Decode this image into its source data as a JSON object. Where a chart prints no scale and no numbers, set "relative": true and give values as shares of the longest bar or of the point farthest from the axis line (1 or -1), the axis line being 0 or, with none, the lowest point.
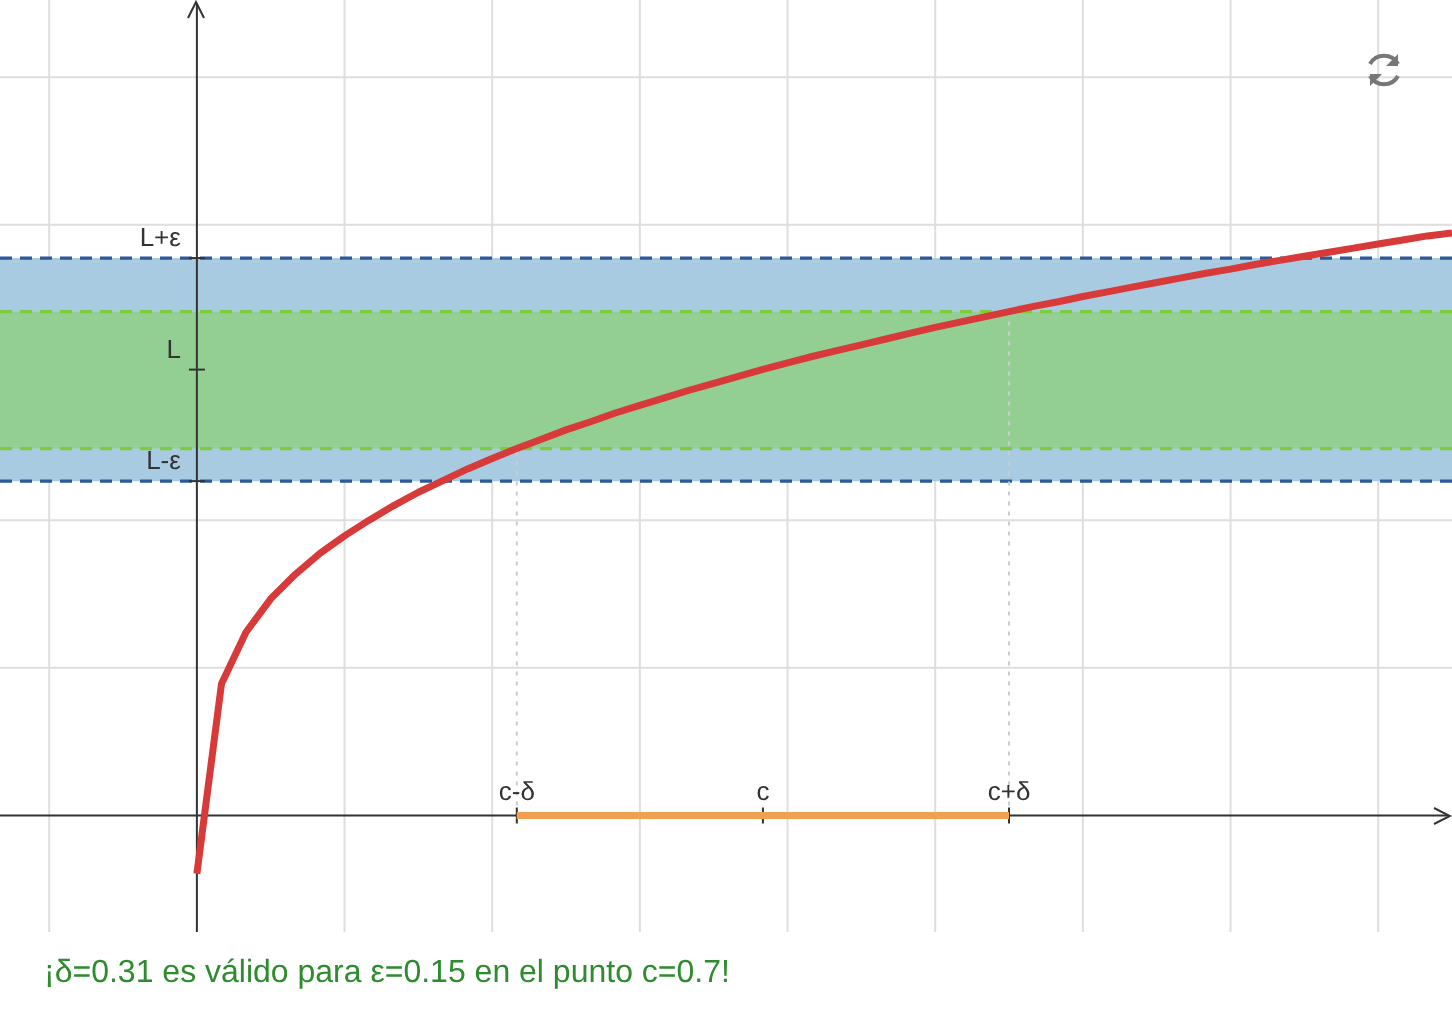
{
  "chart_data": {
    "type": "line",
    "relative": true,
    "marker": "none",
    "line_style": "solid",
    "grid": true,
    "categories": [
      null,
      null,
      null,
      null,
      null,
      null,
      null,
      null,
      null,
      null,
      null,
      null,
      null,
      null,
      null,
      null,
      null,
      null,
      null,
      null,
      null,
      "c-δ",
      null,
      null,
      null,
      null,
      null,
      null,
      null,
      null,
      null,
      "c",
      null,
      null,
      null,
      null,
      null,
      null,
      null,
      null,
      null,
      "c+δ",
      null,
      null,
      null,
      null,
      null,
      null,
      null,
      null,
      null,
      null,
      null,
      null,
      null,
      null,
      null,
      null,
      null,
      null
    ],
    "series": [
      {
        "color": "#d83a3a",
        "values": [
          null,
          null,
          null,
          null,
          null,
          null,
          null,
          null,
          -0.1,
          0.226,
          0.315,
          0.372,
          0.414,
          0.45,
          0.48,
          0.507,
          0.532,
          0.555,
          0.575,
          0.595,
          0.613,
          0.63,
          0.646,
          0.662,
          0.676,
          0.691,
          0.704,
          0.717,
          0.73,
          0.742,
          0.754,
          0.766,
          0.777,
          0.788,
          0.798,
          0.808,
          0.818,
          0.828,
          0.838,
          0.847,
          0.856,
          0.865,
          0.874,
          0.882,
          0.891,
          0.899,
          0.907,
          0.915,
          0.923,
          0.931,
          0.938,
          0.946,
          0.953,
          0.96,
          0.967,
          0.974,
          0.981,
          0.988,
          0.995,
          1
        ]
      },
      {
        "color": "#f0a050",
        "values": [
          null,
          null,
          null,
          null,
          null,
          null,
          null,
          null,
          null,
          null,
          null,
          null,
          null,
          null,
          null,
          null,
          null,
          null,
          null,
          null,
          null,
          0,
          0,
          0,
          0,
          0,
          0,
          0,
          0,
          0,
          0,
          0,
          0,
          0,
          0,
          0,
          0,
          0,
          0,
          0,
          0,
          0,
          null,
          null,
          null,
          null,
          null,
          null,
          null,
          null,
          null,
          null,
          null,
          null,
          null,
          null,
          null,
          null,
          null,
          null
        ]
      }
    ],
    "bands": [
      {
        "axis": "y",
        "from": 0.574,
        "to": 0.957,
        "color": "#a8cbe2"
      },
      {
        "axis": "y",
        "from": 0.63,
        "to": 0.865,
        "color": "#93cf93"
      }
    ],
    "ref_lines": [
      {
        "axis": "y",
        "value": 0.957,
        "label": "L+ε",
        "color": "#2a5a9a",
        "line_style": "dashed"
      },
      {
        "axis": "y",
        "value": 0.574,
        "label": "L-ε",
        "color": "#2a5a9a",
        "line_style": "dashed"
      },
      {
        "axis": "y",
        "value": 0.865,
        "color": "#7ccc3c",
        "line_style": "dashed"
      },
      {
        "axis": "y",
        "value": 0.63,
        "color": "#7ccc3c",
        "line_style": "dashed"
      },
      {
        "axis": "x",
        "value": "c-δ",
        "color": "#cccccc",
        "line_style": "dotted"
      },
      {
        "axis": "x",
        "value": "c+δ",
        "color": "#cccccc",
        "line_style": "dotted"
      }
    ],
    "annotations": [
      "L",
      "¡δ=0.31 es válido para ε=0.15 en el punto c=0.7!"
    ]
  }
}
